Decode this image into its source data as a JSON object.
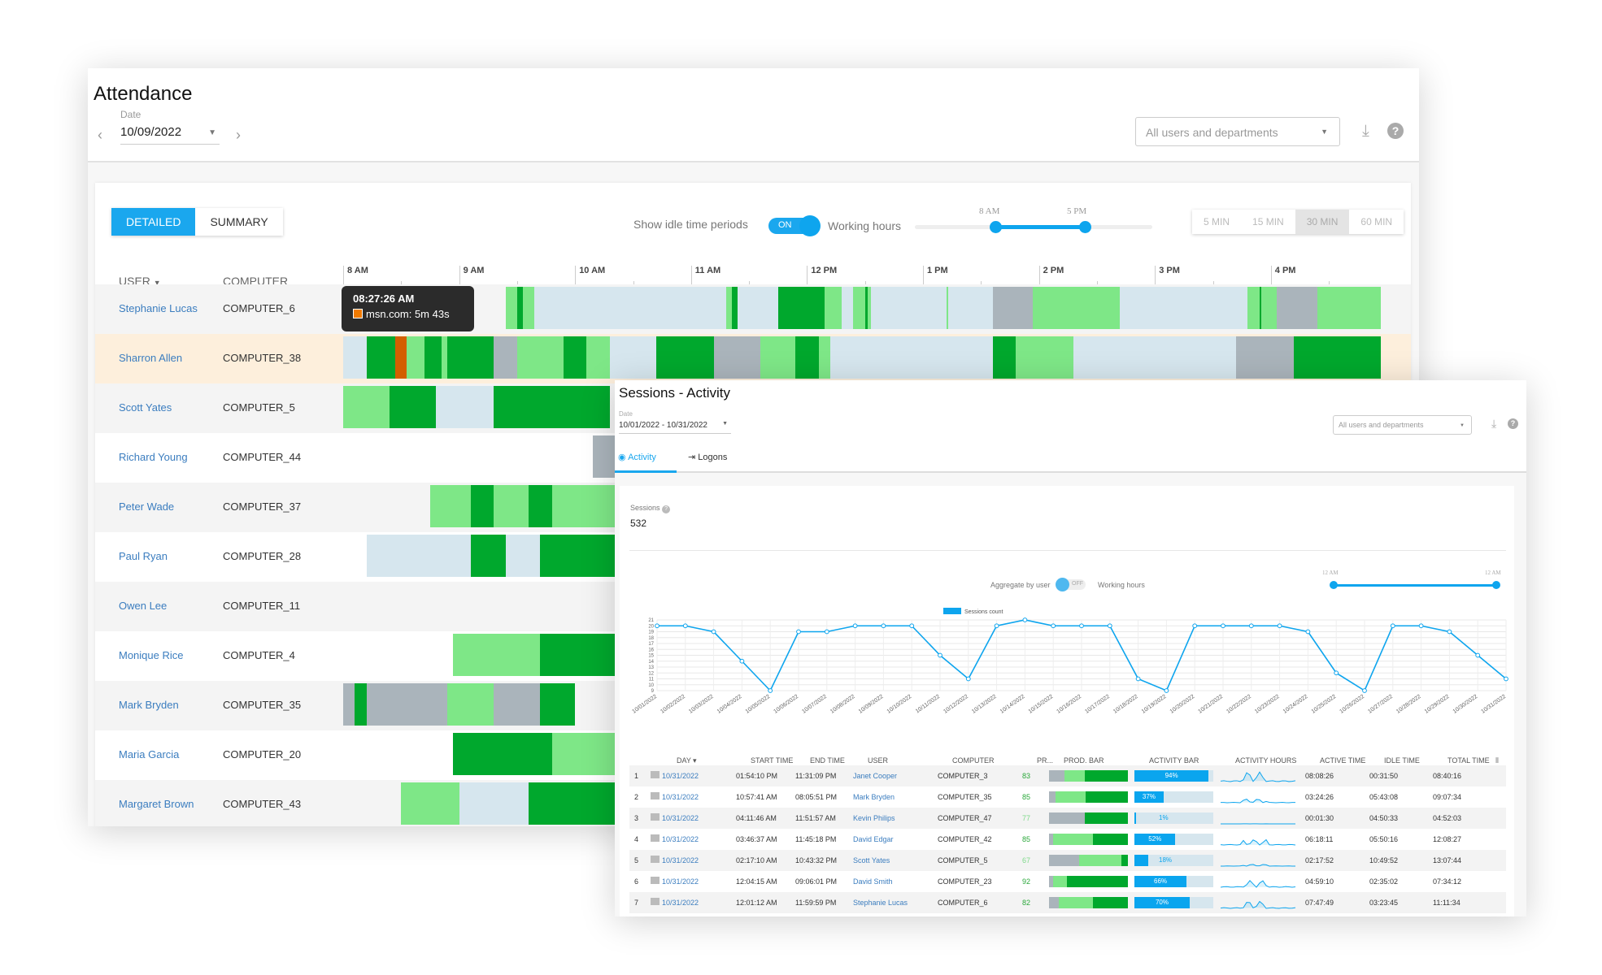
{
  "colors": {
    "accent": "#0ea5ee",
    "active": "#00a82d",
    "light": "#7ee787",
    "idle": "#d6e6ee",
    "gray": "#aab4bb",
    "other": "#d35f00",
    "highlight": "#fdefdc"
  },
  "attendance": {
    "title": "Attendance",
    "date_label": "Date",
    "date": "10/09/2022",
    "filter": "All users and departments",
    "view_buttons": [
      "DETAILED",
      "SUMMARY"
    ],
    "active_view": "DETAILED",
    "idle_label": "Show idle time periods",
    "idle_toggle": "ON",
    "working_hours_label": "Working hours",
    "wh_start": "8 AM",
    "wh_end": "5 PM",
    "wh_range_hours": [
      8,
      17
    ],
    "granularity": [
      "5 MIN",
      "15 MIN",
      "30 MIN",
      "60 MIN"
    ],
    "granularity_selected": "30 MIN",
    "col_user": "USER",
    "col_computer": "COMPUTER",
    "hours": [
      "8 AM",
      "9 AM",
      "10 AM",
      "11 AM",
      "12 PM",
      "1 PM",
      "2 PM",
      "3 PM",
      "4 PM"
    ],
    "tooltip": {
      "time": "08:27:26 AM",
      "text": "msn.com: 5m 43s"
    },
    "rows": [
      {
        "user": "Stephanie Lucas",
        "computer": "COMPUTER_6",
        "segs": [
          [
            9.4,
            9.65,
            "l"
          ],
          [
            9.5,
            9.55,
            "a"
          ],
          [
            9.65,
            11.3,
            "i"
          ],
          [
            11.3,
            11.4,
            "l"
          ],
          [
            11.35,
            11.4,
            "a"
          ],
          [
            11.4,
            11.75,
            "i"
          ],
          [
            11.75,
            12.15,
            "a"
          ],
          [
            12.15,
            12.3,
            "l"
          ],
          [
            12.3,
            12.9,
            "i"
          ],
          [
            12.2,
            12.25,
            "l"
          ],
          [
            12.4,
            12.55,
            "l"
          ],
          [
            12.5,
            12.52,
            "a"
          ],
          [
            12.9,
            13.6,
            "i"
          ],
          [
            13.2,
            13.22,
            "l"
          ],
          [
            13.6,
            13.95,
            "g"
          ],
          [
            13.95,
            14.7,
            "l"
          ],
          [
            14.7,
            15.8,
            "i"
          ],
          [
            15.8,
            16.05,
            "l"
          ],
          [
            15.9,
            15.92,
            "a"
          ],
          [
            16.05,
            16.4,
            "g"
          ],
          [
            16.4,
            16.95,
            "l"
          ]
        ]
      },
      {
        "user": "Sharron Allen",
        "computer": "COMPUTER_38",
        "highlight": true,
        "segs": [
          [
            8,
            8.2,
            "i"
          ],
          [
            8.2,
            8.45,
            "a"
          ],
          [
            8.45,
            8.55,
            "o"
          ],
          [
            8.55,
            8.9,
            "l"
          ],
          [
            8.7,
            8.85,
            "a"
          ],
          [
            8.9,
            9.3,
            "a"
          ],
          [
            9.3,
            9.5,
            "g"
          ],
          [
            9.5,
            10.3,
            "l"
          ],
          [
            9.9,
            10.1,
            "a"
          ],
          [
            10.3,
            10.7,
            "i"
          ],
          [
            10.7,
            11.2,
            "a"
          ],
          [
            11.2,
            11.6,
            "g"
          ],
          [
            11.6,
            12.2,
            "l"
          ],
          [
            11.9,
            12.1,
            "a"
          ],
          [
            12.2,
            13.6,
            "i"
          ],
          [
            13.6,
            13.8,
            "a"
          ],
          [
            13.8,
            14.3,
            "l"
          ],
          [
            14.3,
            15.7,
            "i"
          ],
          [
            15.7,
            16.2,
            "g"
          ],
          [
            16.2,
            16.95,
            "a"
          ]
        ]
      },
      {
        "user": "Scott Yates",
        "computer": "COMPUTER_5",
        "segs": [
          [
            8,
            8.4,
            "l"
          ],
          [
            8.4,
            8.8,
            "a"
          ],
          [
            8.8,
            9.3,
            "i"
          ],
          [
            9.3,
            9.7,
            "a"
          ],
          [
            9.7,
            10.3,
            "a"
          ]
        ]
      },
      {
        "user": "Richard Young",
        "computer": "COMPUTER_44",
        "segs": [
          [
            10.15,
            10.4,
            "g"
          ]
        ]
      },
      {
        "user": "Peter Wade",
        "computer": "COMPUTER_37",
        "segs": [
          [
            8.75,
            10.4,
            "l"
          ],
          [
            9.1,
            9.3,
            "a"
          ],
          [
            9.6,
            9.8,
            "a"
          ]
        ]
      },
      {
        "user": "Paul Ryan",
        "computer": "COMPUTER_28",
        "segs": [
          [
            8.2,
            9.1,
            "i"
          ],
          [
            9.1,
            9.4,
            "a"
          ],
          [
            9.4,
            9.7,
            "i"
          ],
          [
            9.7,
            10.4,
            "a"
          ]
        ]
      },
      {
        "user": "Owen Lee",
        "computer": "COMPUTER_11",
        "segs": []
      },
      {
        "user": "Monique Rice",
        "computer": "COMPUTER_4",
        "segs": [
          [
            8.95,
            9.7,
            "l"
          ],
          [
            9.7,
            10.4,
            "a"
          ]
        ]
      },
      {
        "user": "Mark Bryden",
        "computer": "COMPUTER_35",
        "segs": [
          [
            8,
            8.9,
            "g"
          ],
          [
            8.1,
            8.2,
            "a"
          ],
          [
            8.9,
            9.3,
            "l"
          ],
          [
            9.3,
            9.7,
            "g"
          ],
          [
            9.7,
            10.0,
            "a"
          ]
        ]
      },
      {
        "user": "Maria Garcia",
        "computer": "COMPUTER_20",
        "segs": [
          [
            8.95,
            9.8,
            "a"
          ],
          [
            9.8,
            10.4,
            "l"
          ]
        ]
      },
      {
        "user": "Margaret Brown",
        "computer": "COMPUTER_43",
        "segs": [
          [
            8.5,
            9.0,
            "l"
          ],
          [
            9.0,
            9.6,
            "i"
          ],
          [
            9.6,
            10.4,
            "a"
          ]
        ]
      }
    ]
  },
  "sessions": {
    "title": "Sessions - Activity",
    "date_label": "Date",
    "date": "10/01/2022 - 10/31/2022",
    "filter": "All users and departments",
    "tabs": [
      "Activity",
      "Logons"
    ],
    "active_tab": "Activity",
    "sessions_label": "Sessions",
    "sessions_value": "532",
    "aggregate_label": "Aggregate by user",
    "aggregate_toggle": "OFF",
    "working_hours_label": "Working hours",
    "wh_start": "12 AM",
    "wh_end": "12 AM",
    "columns": [
      "DAY",
      "START TIME",
      "END TIME",
      "USER",
      "COMPUTER",
      "PR...",
      "PROD. BAR",
      "ACTIVITY BAR",
      "ACTIVITY HOURS",
      "ACTIVE TIME",
      "IDLE TIME",
      "TOTAL TIME"
    ],
    "rows": [
      {
        "n": "1",
        "day": "10/31/2022",
        "start": "01:54:10 PM",
        "end": "11:31:09 PM",
        "user": "Janet Cooper",
        "computer": "COMPUTER_3",
        "pr": "83",
        "prod": [
          20,
          25,
          55
        ],
        "act": 94,
        "act_label": "94%",
        "active": "08:08:26",
        "idle": "00:31:50",
        "total": "08:40:16"
      },
      {
        "n": "2",
        "day": "10/31/2022",
        "start": "10:57:41 AM",
        "end": "08:05:51 PM",
        "user": "Mark Bryden",
        "computer": "COMPUTER_35",
        "pr": "85",
        "prod": [
          8,
          38,
          54
        ],
        "act": 37,
        "act_label": "37%",
        "active": "03:24:26",
        "idle": "05:43:08",
        "total": "09:07:34"
      },
      {
        "n": "3",
        "day": "10/31/2022",
        "start": "04:11:46 AM",
        "end": "11:51:57 AM",
        "user": "Kevin Philips",
        "computer": "COMPUTER_47",
        "pr": "77",
        "prod": [
          45,
          0,
          55
        ],
        "act": 1,
        "act_label": "1%",
        "active": "00:01:30",
        "idle": "04:50:33",
        "total": "04:52:03"
      },
      {
        "n": "4",
        "day": "10/31/2022",
        "start": "03:46:37 AM",
        "end": "11:45:18 PM",
        "user": "David Edgar",
        "computer": "COMPUTER_42",
        "pr": "85",
        "prod": [
          5,
          51,
          44
        ],
        "act": 52,
        "act_label": "52%",
        "active": "06:18:11",
        "idle": "05:50:16",
        "total": "12:08:27"
      },
      {
        "n": "5",
        "day": "10/31/2022",
        "start": "02:17:10 AM",
        "end": "10:43:32 PM",
        "user": "Scott Yates",
        "computer": "COMPUTER_5",
        "pr": "67",
        "prod": [
          38,
          54,
          8
        ],
        "act": 18,
        "act_label": "18%",
        "active": "02:17:52",
        "idle": "10:49:52",
        "total": "13:07:44"
      },
      {
        "n": "6",
        "day": "10/31/2022",
        "start": "12:04:15 AM",
        "end": "09:06:01 PM",
        "user": "David Smith",
        "computer": "COMPUTER_23",
        "pr": "92",
        "prod": [
          5,
          18,
          77
        ],
        "act": 66,
        "act_label": "66%",
        "active": "04:59:10",
        "idle": "02:35:02",
        "total": "07:34:12"
      },
      {
        "n": "7",
        "day": "10/31/2022",
        "start": "12:01:12 AM",
        "end": "11:59:59 PM",
        "user": "Stephanie Lucas",
        "computer": "COMPUTER_6",
        "pr": "82",
        "prod": [
          12,
          44,
          44
        ],
        "act": 70,
        "act_label": "70%",
        "active": "07:47:49",
        "idle": "03:23:45",
        "total": "11:11:34"
      }
    ]
  },
  "chart_data": {
    "type": "line",
    "legend": "Sessions count",
    "legend_position": "top",
    "categories": [
      "10/01/2022",
      "10/02/2022",
      "10/03/2022",
      "10/04/2022",
      "10/05/2022",
      "10/06/2022",
      "10/07/2022",
      "10/08/2022",
      "10/09/2022",
      "10/10/2022",
      "10/11/2022",
      "10/12/2022",
      "10/13/2022",
      "10/14/2022",
      "10/15/2022",
      "10/16/2022",
      "10/17/2022",
      "10/18/2022",
      "10/19/2022",
      "10/20/2022",
      "10/21/2022",
      "10/22/2022",
      "10/23/2022",
      "10/24/2022",
      "10/25/2022",
      "10/26/2022",
      "10/27/2022",
      "10/28/2022",
      "10/29/2022",
      "10/30/2022",
      "10/31/2022"
    ],
    "series": [
      {
        "name": "Sessions count",
        "values": [
          20,
          20,
          19,
          14,
          9,
          19,
          19,
          20,
          20,
          20,
          15,
          11,
          20,
          21,
          20,
          20,
          20,
          11,
          9,
          20,
          20,
          20,
          20,
          19,
          12,
          9,
          20,
          20,
          19,
          15,
          11
        ]
      }
    ],
    "ylim": [
      9,
      21
    ],
    "yticks": [
      9,
      10,
      11,
      12,
      13,
      14,
      15,
      16,
      17,
      18,
      19,
      20,
      21
    ],
    "grid": true,
    "color": "#0ea5ee"
  }
}
